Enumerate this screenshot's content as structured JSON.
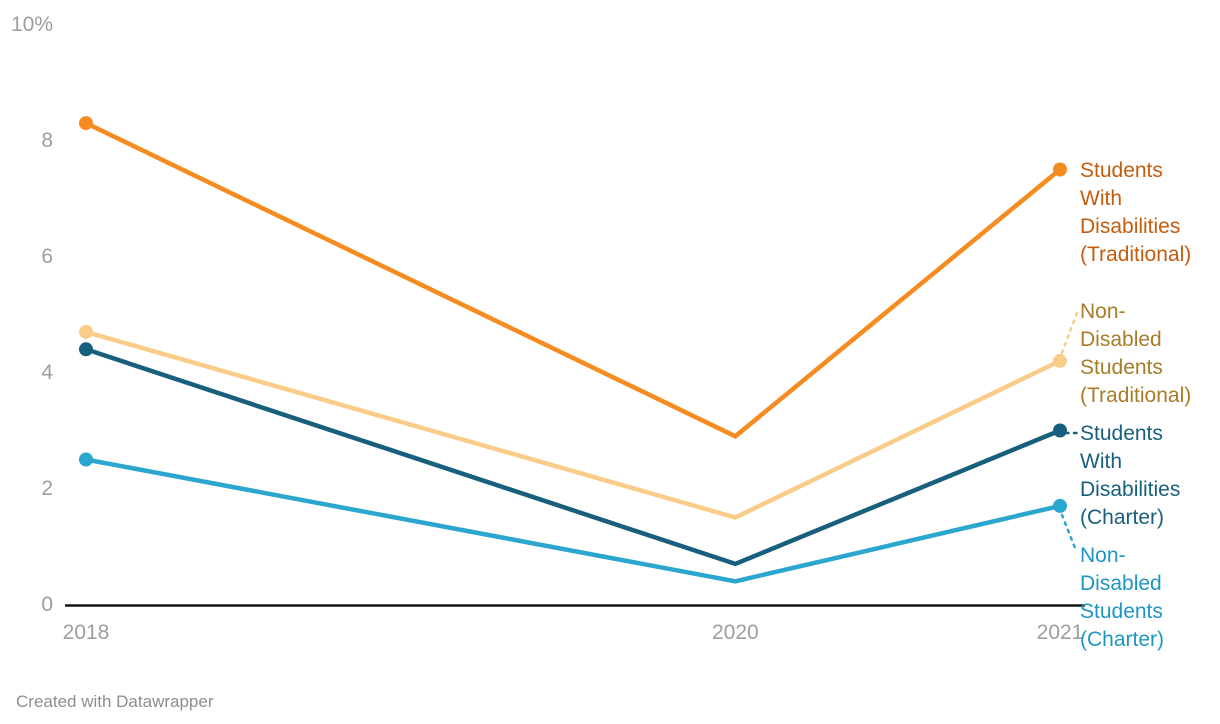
{
  "chart_data": {
    "type": "line",
    "title": "",
    "x": [
      2018,
      2020,
      2021
    ],
    "x_tick_labels": [
      "2018",
      "2020",
      "2021"
    ],
    "ylim": [
      0,
      10
    ],
    "y_unit": "%",
    "y_ticks": [
      {
        "value": 0,
        "label": "0"
      },
      {
        "value": 2,
        "label": "2"
      },
      {
        "value": 4,
        "label": "4"
      },
      {
        "value": 6,
        "label": "6"
      },
      {
        "value": 8,
        "label": "8"
      },
      {
        "value": 10,
        "label": "10%"
      }
    ],
    "grid": false,
    "legend_position": "direct-labels-right",
    "series": [
      {
        "name": "Students With Disabilities (Traditional)",
        "values": [
          8.3,
          2.9,
          7.5
        ],
        "line_color": "#F68B1F",
        "label_color": "#C55C0D",
        "label_lines": [
          "Students",
          "With",
          "Disabilities",
          "(Traditional)"
        ]
      },
      {
        "name": "Non-Disabled Students (Traditional)",
        "values": [
          4.7,
          1.5,
          4.2
        ],
        "line_color": "#FACC8A",
        "label_color": "#A87C28",
        "label_lines": [
          "Non-",
          "Disabled",
          "Students",
          "(Traditional)"
        ]
      },
      {
        "name": "Students With Disabilities (Charter)",
        "values": [
          4.4,
          0.7,
          3.0
        ],
        "line_color": "#185F7D",
        "label_color": "#185F7D",
        "label_lines": [
          "Students",
          "With",
          "Disabilities",
          "(Charter)"
        ]
      },
      {
        "name": "Non-Disabled Students (Charter)",
        "values": [
          2.5,
          0.4,
          1.7
        ],
        "line_color": "#2AA6CF",
        "label_color": "#1E96C3",
        "label_lines": [
          "Non-",
          "Disabled",
          "Students",
          "(Charter)"
        ]
      }
    ]
  },
  "colors": {
    "axis_line": "#141414",
    "tick_text": "#9E9E9E",
    "background": "#FFFFFF"
  },
  "footer": {
    "credit": "Created with Datawrapper"
  }
}
